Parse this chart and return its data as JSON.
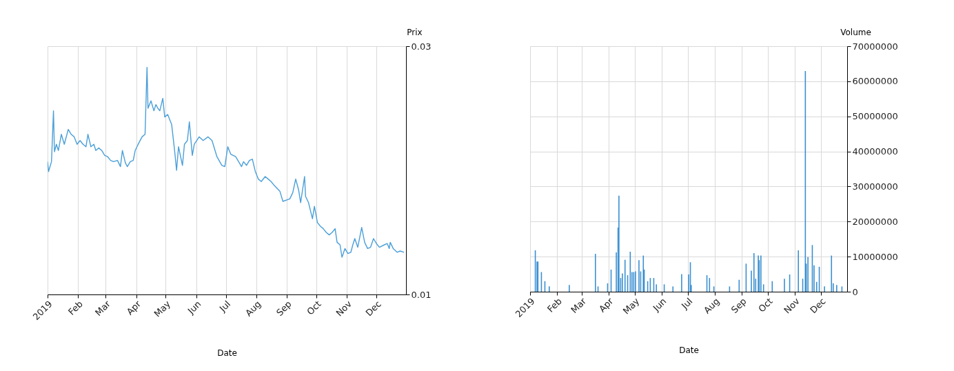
{
  "chart_data": [
    {
      "type": "line",
      "xlabel": "Date",
      "ylabel": "Prix",
      "color": "#4a9fd8",
      "grid": true,
      "xlim": [
        "2019-01-01",
        "2019-12-31"
      ],
      "xticks": [
        {
          "value": "2019-01-01",
          "label": "2019"
        },
        {
          "value": "2019-02-01",
          "label": "Feb"
        },
        {
          "value": "2019-03-01",
          "label": "Mar"
        },
        {
          "value": "2019-04-01",
          "label": "Apr"
        },
        {
          "value": "2019-05-01",
          "label": "May"
        },
        {
          "value": "2019-06-01",
          "label": "Jun"
        },
        {
          "value": "2019-07-01",
          "label": "Jul"
        },
        {
          "value": "2019-08-01",
          "label": "Aug"
        },
        {
          "value": "2019-09-01",
          "label": "Sep"
        },
        {
          "value": "2019-10-01",
          "label": "Oct"
        },
        {
          "value": "2019-11-01",
          "label": "Nov"
        },
        {
          "value": "2019-12-01",
          "label": "Dec"
        }
      ],
      "ylim": [
        0.01,
        0.03
      ],
      "yticks": [
        0.01,
        0.03
      ],
      "x": [
        "2019-01-01",
        "2019-01-02",
        "2019-01-05",
        "2019-01-07",
        "2019-01-08",
        "2019-01-10",
        "2019-01-12",
        "2019-01-15",
        "2019-01-18",
        "2019-01-22",
        "2019-01-25",
        "2019-01-28",
        "2019-01-31",
        "2019-02-03",
        "2019-02-06",
        "2019-02-09",
        "2019-02-11",
        "2019-02-14",
        "2019-02-17",
        "2019-02-19",
        "2019-02-22",
        "2019-02-25",
        "2019-02-28",
        "2019-03-03",
        "2019-03-06",
        "2019-03-09",
        "2019-03-13",
        "2019-03-16",
        "2019-03-18",
        "2019-03-21",
        "2019-03-23",
        "2019-03-26",
        "2019-03-29",
        "2019-03-31",
        "2019-04-03",
        "2019-04-07",
        "2019-04-10",
        "2019-04-12",
        "2019-04-13",
        "2019-04-16",
        "2019-04-19",
        "2019-04-21",
        "2019-04-23",
        "2019-04-25",
        "2019-04-28",
        "2019-04-30",
        "2019-05-03",
        "2019-05-07",
        "2019-05-10",
        "2019-05-12",
        "2019-05-14",
        "2019-05-18",
        "2019-05-20",
        "2019-05-23",
        "2019-05-25",
        "2019-05-27",
        "2019-05-28",
        "2019-05-30",
        "2019-06-04",
        "2019-06-08",
        "2019-06-13",
        "2019-06-17",
        "2019-06-22",
        "2019-06-27",
        "2019-06-30",
        "2019-07-03",
        "2019-07-06",
        "2019-07-11",
        "2019-07-14",
        "2019-07-17",
        "2019-07-19",
        "2019-07-22",
        "2019-07-25",
        "2019-07-28",
        "2019-07-31",
        "2019-08-03",
        "2019-08-06",
        "2019-08-10",
        "2019-08-13",
        "2019-08-16",
        "2019-08-19",
        "2019-08-25",
        "2019-08-28",
        "2019-09-04",
        "2019-09-07",
        "2019-09-10",
        "2019-09-13",
        "2019-09-15",
        "2019-09-19",
        "2019-09-20",
        "2019-09-23",
        "2019-09-27",
        "2019-09-29",
        "2019-10-02",
        "2019-10-05",
        "2019-10-08",
        "2019-10-11",
        "2019-10-14",
        "2019-10-17",
        "2019-10-20",
        "2019-10-22",
        "2019-10-25",
        "2019-10-27",
        "2019-10-30",
        "2019-11-02",
        "2019-11-05",
        "2019-11-07",
        "2019-11-09",
        "2019-11-12",
        "2019-11-16",
        "2019-11-19",
        "2019-11-22",
        "2019-11-25",
        "2019-11-28",
        "2019-12-01",
        "2019-12-04",
        "2019-12-09",
        "2019-12-12",
        "2019-12-14",
        "2019-12-15",
        "2019-12-18",
        "2019-12-22",
        "2019-12-25",
        "2019-12-29"
      ],
      "values": [
        0.0207,
        0.0199,
        0.0207,
        0.0248,
        0.0215,
        0.0221,
        0.0216,
        0.0229,
        0.0221,
        0.0233,
        0.0229,
        0.0227,
        0.0221,
        0.0224,
        0.0221,
        0.0219,
        0.0229,
        0.0219,
        0.0221,
        0.0216,
        0.0218,
        0.0216,
        0.0212,
        0.0211,
        0.0208,
        0.0207,
        0.0208,
        0.0203,
        0.0216,
        0.0206,
        0.0203,
        0.0207,
        0.0208,
        0.0216,
        0.0221,
        0.0227,
        0.0229,
        0.0283,
        0.025,
        0.0256,
        0.0248,
        0.0253,
        0.025,
        0.0248,
        0.0258,
        0.0243,
        0.0245,
        0.0237,
        0.0216,
        0.02,
        0.0219,
        0.0204,
        0.0221,
        0.0224,
        0.0239,
        0.0221,
        0.0212,
        0.0221,
        0.0227,
        0.0224,
        0.0227,
        0.0224,
        0.0211,
        0.0204,
        0.0203,
        0.0219,
        0.0213,
        0.0211,
        0.0207,
        0.0203,
        0.0207,
        0.0204,
        0.0208,
        0.0209,
        0.0199,
        0.0193,
        0.0191,
        0.0195,
        0.0193,
        0.0191,
        0.0188,
        0.0183,
        0.0175,
        0.0177,
        0.0182,
        0.0193,
        0.0184,
        0.0174,
        0.0195,
        0.0179,
        0.0174,
        0.0161,
        0.0171,
        0.0158,
        0.0155,
        0.0153,
        0.015,
        0.0148,
        0.015,
        0.0153,
        0.0142,
        0.014,
        0.013,
        0.0137,
        0.0133,
        0.0134,
        0.014,
        0.0145,
        0.0138,
        0.0154,
        0.0142,
        0.0137,
        0.0138,
        0.0145,
        0.0141,
        0.0138,
        0.014,
        0.0141,
        0.0137,
        0.0142,
        0.0137,
        0.0134,
        0.0135,
        0.0134
      ]
    },
    {
      "type": "bar",
      "xlabel": "Date",
      "ylabel": "Volume",
      "color": "#3a8fd0",
      "grid": true,
      "xlim": [
        "2019-01-01",
        "2019-12-31"
      ],
      "xticks": [
        {
          "value": "2019-01-01",
          "label": "2019"
        },
        {
          "value": "2019-02-01",
          "label": "Feb"
        },
        {
          "value": "2019-03-01",
          "label": "Mar"
        },
        {
          "value": "2019-04-01",
          "label": "Apr"
        },
        {
          "value": "2019-05-01",
          "label": "May"
        },
        {
          "value": "2019-06-01",
          "label": "Jun"
        },
        {
          "value": "2019-07-01",
          "label": "Jul"
        },
        {
          "value": "2019-08-01",
          "label": "Aug"
        },
        {
          "value": "2019-09-01",
          "label": "Sep"
        },
        {
          "value": "2019-10-01",
          "label": "Oct"
        },
        {
          "value": "2019-11-01",
          "label": "Nov"
        },
        {
          "value": "2019-12-01",
          "label": "Dec"
        }
      ],
      "ylim": [
        0,
        70000000
      ],
      "yticks": [
        0,
        10000000,
        20000000,
        30000000,
        40000000,
        50000000,
        60000000,
        70000000
      ],
      "x": [
        "2019-01-07",
        "2019-01-09",
        "2019-01-10",
        "2019-01-14",
        "2019-01-18",
        "2019-01-23",
        "2019-02-15",
        "2019-03-17",
        "2019-03-20",
        "2019-03-31",
        "2019-04-04",
        "2019-04-10",
        "2019-04-12",
        "2019-04-13",
        "2019-04-15",
        "2019-04-17",
        "2019-04-20",
        "2019-04-23",
        "2019-04-26",
        "2019-04-28",
        "2019-04-30",
        "2019-05-02",
        "2019-05-06",
        "2019-05-08",
        "2019-05-11",
        "2019-05-12",
        "2019-05-16",
        "2019-05-19",
        "2019-05-23",
        "2019-05-26",
        "2019-06-04",
        "2019-06-14",
        "2019-06-24",
        "2019-07-02",
        "2019-07-04",
        "2019-07-05",
        "2019-07-23",
        "2019-07-26",
        "2019-07-31",
        "2019-08-18",
        "2019-08-29",
        "2019-09-06",
        "2019-09-12",
        "2019-09-15",
        "2019-09-17",
        "2019-09-20",
        "2019-09-21",
        "2019-09-23",
        "2019-09-26",
        "2019-10-06",
        "2019-10-20",
        "2019-10-26",
        "2019-11-05",
        "2019-11-10",
        "2019-11-13",
        "2019-11-14",
        "2019-11-16",
        "2019-11-21",
        "2019-11-23",
        "2019-11-26",
        "2019-11-29",
        "2019-12-05",
        "2019-12-13",
        "2019-12-15",
        "2019-12-19",
        "2019-12-25"
      ],
      "values": [
        11800000,
        8600000,
        8600000,
        5600000,
        3000000,
        1500000,
        1900000,
        10800000,
        1500000,
        2400000,
        6300000,
        11200000,
        18300000,
        27400000,
        3900000,
        5200000,
        9100000,
        4700000,
        11400000,
        5600000,
        5600000,
        5800000,
        9000000,
        5800000,
        10300000,
        6300000,
        3000000,
        3900000,
        3900000,
        2100000,
        2100000,
        1500000,
        5000000,
        4900000,
        8400000,
        1900000,
        4700000,
        3900000,
        1500000,
        1500000,
        3400000,
        8000000,
        6000000,
        11000000,
        3700000,
        10300000,
        9000000,
        10300000,
        2100000,
        3000000,
        3700000,
        4900000,
        11800000,
        3700000,
        62900000,
        8000000,
        9900000,
        13300000,
        7500000,
        2800000,
        7100000,
        1500000,
        10300000,
        2400000,
        1900000,
        1500000
      ]
    }
  ]
}
